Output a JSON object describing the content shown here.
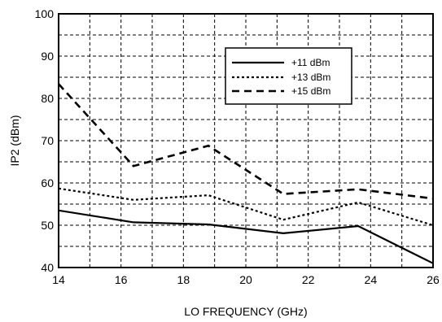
{
  "chart_data": {
    "type": "line",
    "xlabel": "LO FREQUENCY (GHz)",
    "ylabel": "IP2 (dBm)",
    "xlim": [
      14,
      26
    ],
    "ylim": [
      40,
      100
    ],
    "x_ticks": [
      14,
      16,
      18,
      20,
      22,
      24,
      26
    ],
    "y_ticks": [
      40,
      50,
      60,
      70,
      80,
      90,
      100
    ],
    "x_tick_labels": [
      "14",
      "16",
      "18",
      "20",
      "22",
      "24",
      "26"
    ],
    "y_tick_labels": [
      "40",
      "50",
      "60",
      "70",
      "80",
      "90",
      "100"
    ],
    "grid": true,
    "grid_style": "dashed",
    "legend_position": "top-right",
    "series": [
      {
        "name": "+11 dBm",
        "line_style": "solid",
        "x": [
          14,
          16.4,
          18.8,
          21.2,
          23.6,
          26
        ],
        "y": [
          53.5,
          50.7,
          50.2,
          48.1,
          49.8,
          41
        ]
      },
      {
        "name": "+13 dBm",
        "line_style": "dotted",
        "x": [
          14,
          16.4,
          18.8,
          21.2,
          23.6,
          26
        ],
        "y": [
          58.7,
          56,
          57.1,
          51.3,
          55.4,
          50
        ]
      },
      {
        "name": "+15 dBm",
        "line_style": "dashed",
        "x": [
          14,
          16.4,
          18.8,
          21.2,
          23.6,
          26
        ],
        "y": [
          83.4,
          64,
          68.8,
          57.4,
          58.5,
          56.3
        ]
      }
    ]
  }
}
